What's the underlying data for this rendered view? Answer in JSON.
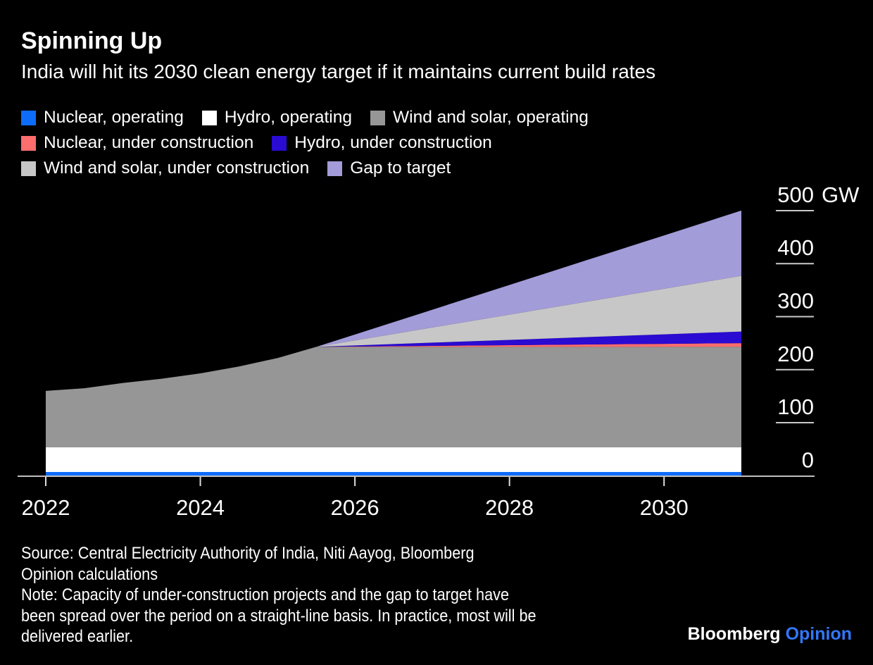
{
  "header": {
    "title": "Spinning Up",
    "subtitle": "India will hit its 2030 clean energy target if it maintains current build rates"
  },
  "legend": {
    "rows": [
      [
        {
          "label": "Nuclear, operating",
          "color": "#0e6cfb"
        },
        {
          "label": "Hydro, operating",
          "color": "#ffffff"
        },
        {
          "label": "Wind and solar, operating",
          "color": "#969696"
        }
      ],
      [
        {
          "label": "Nuclear, under construction",
          "color": "#fc6d6d"
        },
        {
          "label": "Hydro, under construction",
          "color": "#2a0bd2"
        }
      ],
      [
        {
          "label": "Wind and solar, under construction",
          "color": "#c7c7c7"
        },
        {
          "label": "Gap to target",
          "color": "#a29cd9"
        }
      ]
    ]
  },
  "chart_data": {
    "type": "area",
    "stacked": true,
    "title": "Spinning Up",
    "subtitle": "India will hit its 2030 clean energy target if it maintains current build rates",
    "unit": "GW",
    "grid": false,
    "legend_position": "top",
    "xlim": [
      2022,
      2031
    ],
    "ylim": [
      0,
      500
    ],
    "x_ticks": [
      2022,
      2024,
      2026,
      2028,
      2030
    ],
    "y_ticks": [
      0,
      100,
      200,
      300,
      400,
      500
    ],
    "y_unit_suffix": "GW",
    "x": [
      2022,
      2022.5,
      2023,
      2023.5,
      2024,
      2024.5,
      2025,
      2025.5,
      2026,
      2027,
      2028,
      2029,
      2030,
      2031
    ],
    "series": [
      {
        "name": "Nuclear, operating",
        "color": "#0e6cfb",
        "values": [
          7,
          7,
          7,
          7,
          7,
          7,
          7,
          7,
          7,
          7,
          7,
          7,
          7,
          7
        ]
      },
      {
        "name": "Hydro, operating",
        "color": "#ffffff",
        "values": [
          47,
          47,
          47,
          47,
          47,
          47,
          47,
          47,
          47,
          47,
          47,
          47,
          47,
          47
        ]
      },
      {
        "name": "Wind and solar, operating",
        "color": "#969696",
        "values": [
          106,
          111,
          121,
          129,
          139,
          152,
          168,
          189,
          189,
          189,
          189,
          189,
          189,
          189
        ]
      },
      {
        "name": "Nuclear, under construction",
        "color": "#fc6d6d",
        "values": [
          0,
          0,
          0,
          0,
          0,
          0,
          0,
          0,
          0.6,
          1.9,
          3.2,
          4.5,
          5.7,
          7
        ]
      },
      {
        "name": "Hydro, under construction",
        "color": "#2a0bd2",
        "values": [
          0,
          0,
          0,
          0,
          0,
          0,
          0,
          0,
          2,
          6,
          10,
          14,
          18,
          22
        ]
      },
      {
        "name": "Wind and solar, under construction",
        "color": "#c7c7c7",
        "values": [
          0,
          0,
          0,
          0,
          0,
          0,
          0,
          0,
          9.5,
          28.6,
          47.7,
          66.8,
          85.9,
          105
        ]
      },
      {
        "name": "Gap to target",
        "color": "#a29cd9",
        "values": [
          0,
          0,
          0,
          0,
          0,
          0,
          0,
          0,
          11.2,
          33.5,
          55.9,
          78.3,
          100.6,
          123
        ]
      }
    ]
  },
  "footer": {
    "source_lines": [
      "Source: Central Electricity Authority of India, Niti Aayog, Bloomberg",
      "Opinion calculations"
    ],
    "note_lines": [
      "Note: Capacity of under-construction projects and the gap to target have",
      "been spread over the period on a straight-line basis. In practice, most will be",
      "delivered earlier."
    ]
  },
  "logo": {
    "brand": "Bloomberg",
    "product": "Opinion",
    "product_color": "#3277f6"
  }
}
